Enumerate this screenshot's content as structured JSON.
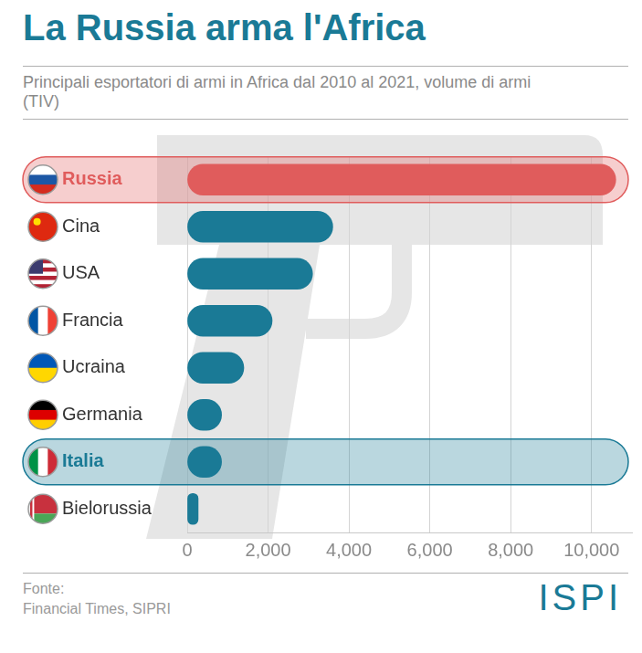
{
  "chart_data": {
    "type": "bar",
    "orientation": "horizontal",
    "title": "La Russia arma l'Africa",
    "subtitle": "Principali esportatori di armi in Africa dal 2010 al 2021, volume di armi (TIV)",
    "categories": [
      "Russia",
      "Cina",
      "USA",
      "Francia",
      "Ucraina",
      "Germania",
      "Italia",
      "Bielorussia"
    ],
    "values": [
      10600,
      3600,
      3100,
      2100,
      1400,
      850,
      850,
      270
    ],
    "colors": [
      "#e05c5c",
      "#1a7a96",
      "#1a7a96",
      "#1a7a96",
      "#1a7a96",
      "#1a7a96",
      "#1a7a96",
      "#1a7a96"
    ],
    "xlim": [
      0,
      11000
    ],
    "xticks": [
      0,
      {
        "value": 2000,
        "label": "2,000"
      },
      {
        "value": 4000,
        "label": "4,000"
      },
      {
        "value": 6000,
        "label": "6,000"
      },
      {
        "value": 8000,
        "label": "8,000"
      },
      {
        "value": 10000,
        "label": "10,000"
      }
    ],
    "grid": true,
    "annotations": [
      "Fonte:",
      "Financial Times, SIPRI",
      "ISPI"
    ]
  }
}
